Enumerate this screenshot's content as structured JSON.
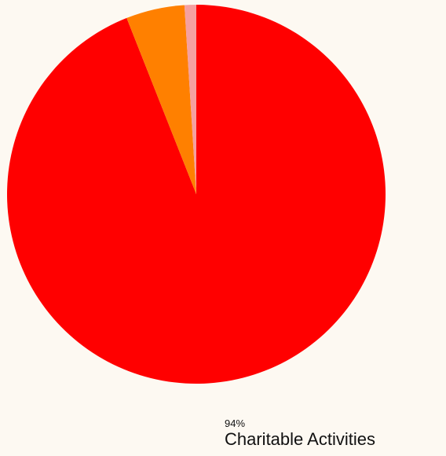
{
  "chart_data": {
    "type": "pie",
    "slices": [
      {
        "value": 94,
        "color": "#ff0000"
      },
      {
        "value": 5,
        "color": "#ff8000"
      },
      {
        "value": 1,
        "color": "#f5a0a0"
      }
    ],
    "unit": "%",
    "legend": {
      "percent": "94%",
      "label": "Charitable Activities"
    },
    "background": "#fdf9f2"
  }
}
